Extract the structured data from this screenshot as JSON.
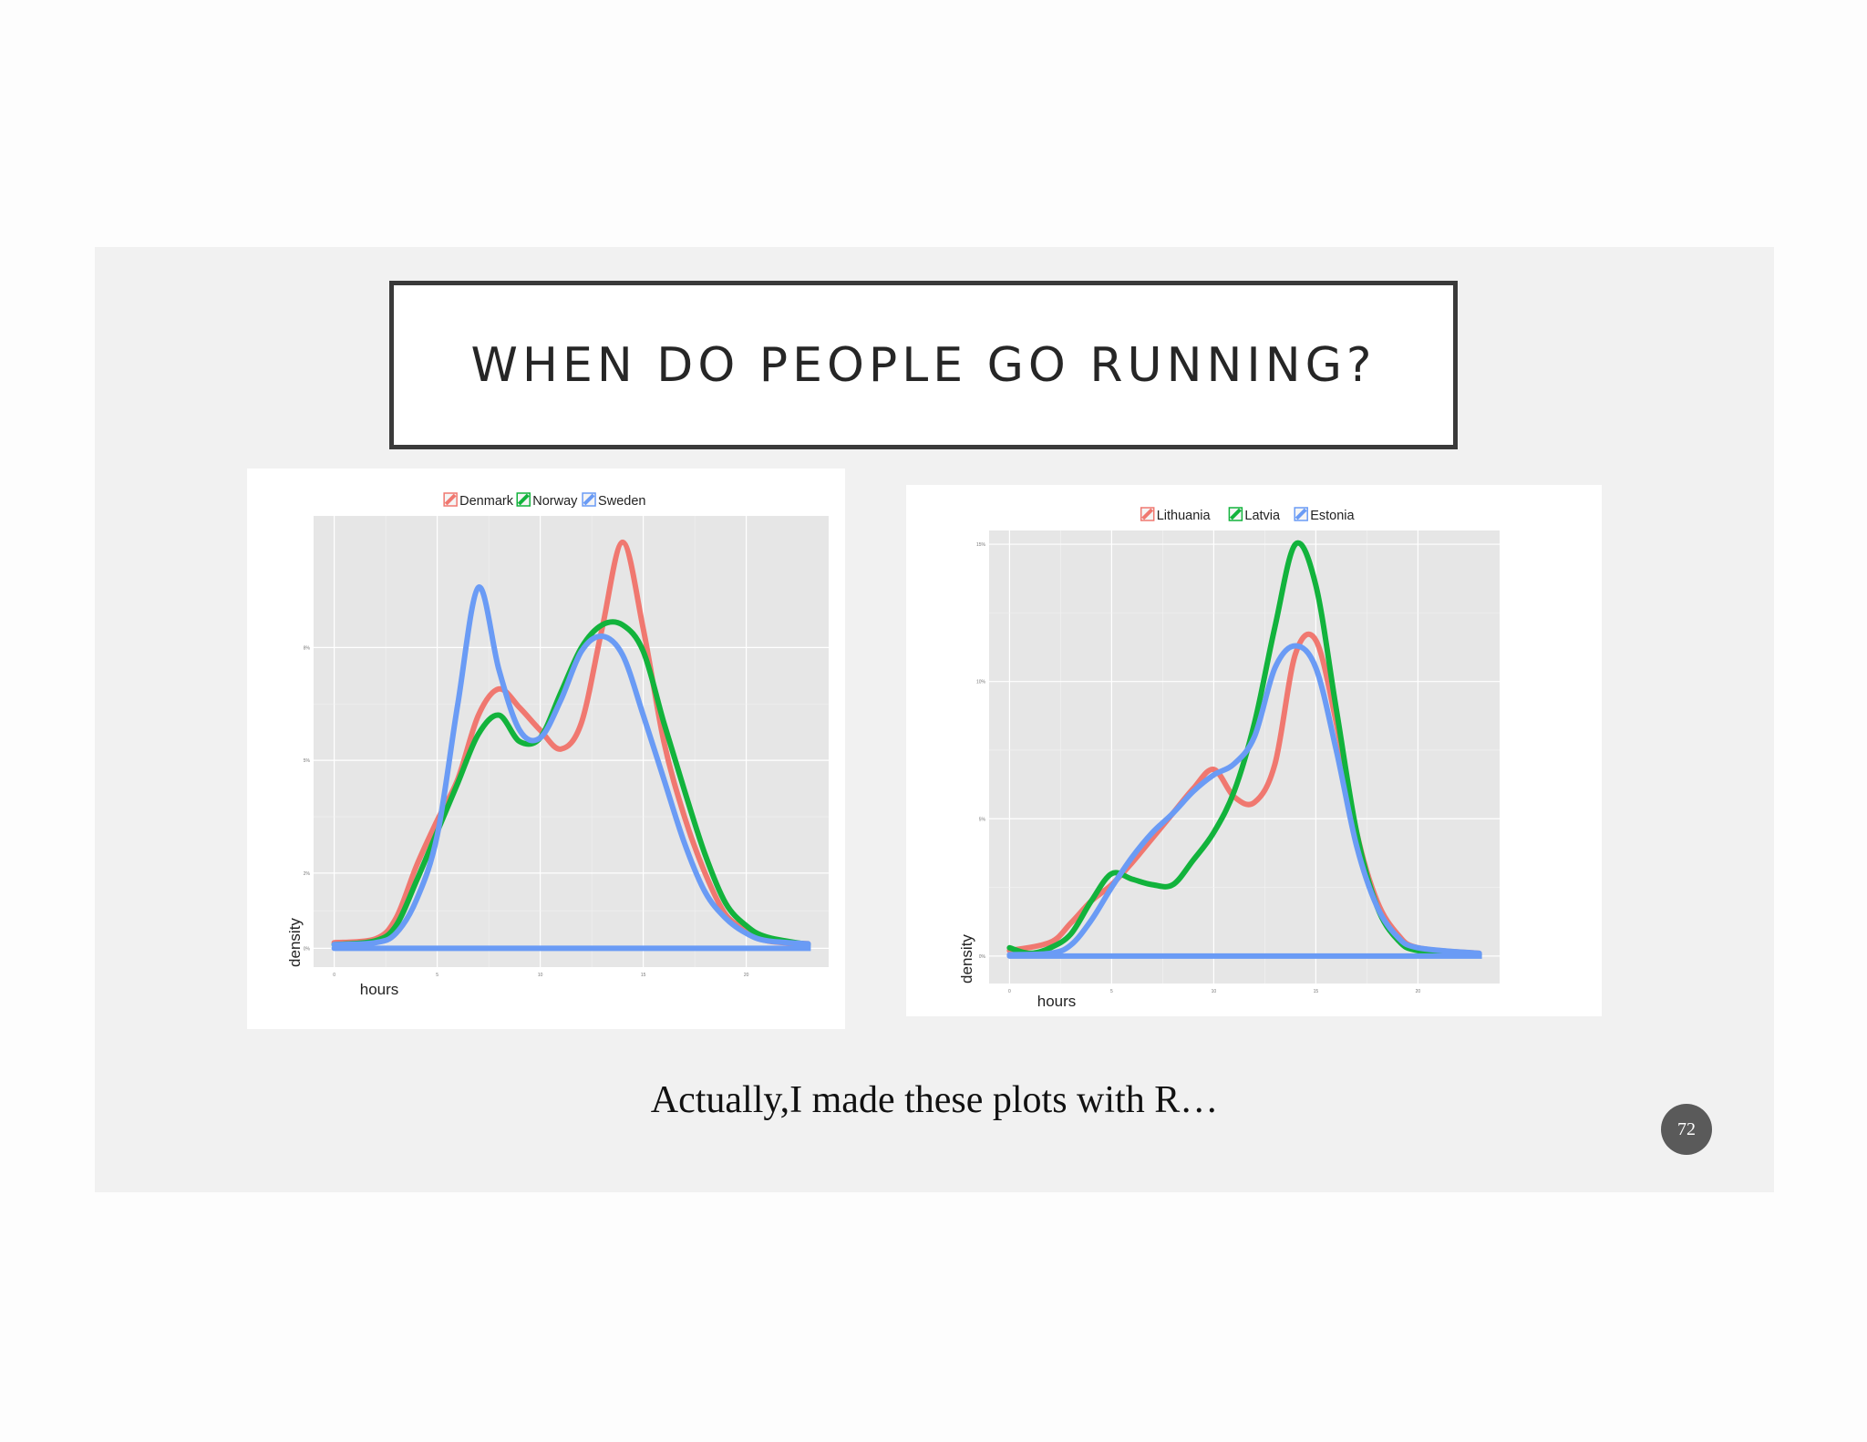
{
  "slide": {
    "title": "WHEN DO PEOPLE GO RUNNING?",
    "caption": "Actually,I made these plots with R…",
    "page_number": "72"
  },
  "colors": {
    "red": "#f07870",
    "green": "#12b33c",
    "blue": "#6a9bf5"
  },
  "chart_data": [
    {
      "type": "line",
      "legend": [
        "Denmark",
        "Norway",
        "Sweden"
      ],
      "xlabel": "hours",
      "ylabel": "density",
      "x_ticks": [
        "0",
        "5",
        "10",
        "15",
        "20"
      ],
      "y_ticks": [
        "0%",
        "2%",
        "5%",
        "8%"
      ],
      "xlim": [
        -1,
        24
      ],
      "ylim": [
        -0.5,
        11.5
      ],
      "series": [
        {
          "name": "Denmark",
          "color": "#f07870",
          "points": [
            [
              0,
              0.15
            ],
            [
              2,
              0.25
            ],
            [
              3,
              0.8
            ],
            [
              4,
              2.2
            ],
            [
              5,
              3.4
            ],
            [
              6,
              4.5
            ],
            [
              7,
              6.2
            ],
            [
              8,
              6.9
            ],
            [
              9,
              6.4
            ],
            [
              10,
              5.8
            ],
            [
              11,
              5.3
            ],
            [
              12,
              6.0
            ],
            [
              13,
              8.5
            ],
            [
              14,
              10.8
            ],
            [
              15,
              8.5
            ],
            [
              16,
              5.5
            ],
            [
              17,
              3.5
            ],
            [
              18,
              2.0
            ],
            [
              19,
              0.9
            ],
            [
              20,
              0.5
            ],
            [
              21,
              0.2
            ],
            [
              23,
              0.12
            ]
          ]
        },
        {
          "name": "Norway",
          "color": "#12b33c",
          "points": [
            [
              0,
              0.1
            ],
            [
              2,
              0.2
            ],
            [
              3,
              0.6
            ],
            [
              4,
              1.8
            ],
            [
              5,
              3.1
            ],
            [
              6,
              4.4
            ],
            [
              7,
              5.7
            ],
            [
              8,
              6.2
            ],
            [
              9,
              5.5
            ],
            [
              10,
              5.6
            ],
            [
              11,
              6.8
            ],
            [
              12,
              8.0
            ],
            [
              13,
              8.6
            ],
            [
              14,
              8.6
            ],
            [
              15,
              7.9
            ],
            [
              16,
              6.0
            ],
            [
              17,
              4.2
            ],
            [
              18,
              2.5
            ],
            [
              19,
              1.2
            ],
            [
              20,
              0.6
            ],
            [
              21,
              0.3
            ],
            [
              23,
              0.1
            ]
          ]
        },
        {
          "name": "Sweden",
          "color": "#6a9bf5",
          "points": [
            [
              0,
              0.1
            ],
            [
              2,
              0.15
            ],
            [
              3,
              0.4
            ],
            [
              4,
              1.3
            ],
            [
              5,
              3.0
            ],
            [
              6,
              6.5
            ],
            [
              7,
              9.6
            ],
            [
              8,
              7.4
            ],
            [
              9,
              5.8
            ],
            [
              10,
              5.6
            ],
            [
              11,
              6.6
            ],
            [
              12,
              7.9
            ],
            [
              13,
              8.3
            ],
            [
              14,
              7.8
            ],
            [
              15,
              6.2
            ],
            [
              16,
              4.5
            ],
            [
              17,
              2.8
            ],
            [
              18,
              1.5
            ],
            [
              19,
              0.8
            ],
            [
              20,
              0.4
            ],
            [
              21,
              0.2
            ],
            [
              23,
              0.12
            ]
          ]
        }
      ]
    },
    {
      "type": "line",
      "legend": [
        "Lithuania",
        "Latvia",
        "Estonia"
      ],
      "xlabel": "hours",
      "ylabel": "density",
      "x_ticks": [
        "0",
        "5",
        "10",
        "15",
        "20"
      ],
      "y_ticks": [
        "0%",
        "5%",
        "10%",
        "15%"
      ],
      "xlim": [
        -1,
        24
      ],
      "ylim": [
        -1,
        15.5
      ],
      "series": [
        {
          "name": "Lithuania",
          "color": "#f07870",
          "points": [
            [
              0,
              0.2
            ],
            [
              2,
              0.5
            ],
            [
              3,
              1.2
            ],
            [
              4,
              2.0
            ],
            [
              5,
              2.6
            ],
            [
              6,
              3.4
            ],
            [
              7,
              4.3
            ],
            [
              8,
              5.2
            ],
            [
              9,
              6.1
            ],
            [
              10,
              6.8
            ],
            [
              11,
              5.8
            ],
            [
              12,
              5.6
            ],
            [
              13,
              7.0
            ],
            [
              14,
              11.0
            ],
            [
              15,
              11.5
            ],
            [
              16,
              8.5
            ],
            [
              17,
              4.5
            ],
            [
              18,
              2.0
            ],
            [
              19,
              0.8
            ],
            [
              20,
              0.3
            ],
            [
              23,
              0.1
            ]
          ]
        },
        {
          "name": "Latvia",
          "color": "#12b33c",
          "points": [
            [
              0,
              0.3
            ],
            [
              1,
              0.1
            ],
            [
              2,
              0.3
            ],
            [
              3,
              0.8
            ],
            [
              4,
              2.0
            ],
            [
              5,
              3.0
            ],
            [
              6,
              2.8
            ],
            [
              7,
              2.6
            ],
            [
              8,
              2.6
            ],
            [
              9,
              3.5
            ],
            [
              10,
              4.5
            ],
            [
              11,
              6.0
            ],
            [
              12,
              8.5
            ],
            [
              13,
              12.0
            ],
            [
              14,
              15.0
            ],
            [
              15,
              13.5
            ],
            [
              16,
              9.0
            ],
            [
              17,
              4.5
            ],
            [
              18,
              1.8
            ],
            [
              19,
              0.6
            ],
            [
              20,
              0.2
            ],
            [
              23,
              0.05
            ]
          ]
        },
        {
          "name": "Estonia",
          "color": "#6a9bf5",
          "points": [
            [
              0,
              0.05
            ],
            [
              2,
              0.1
            ],
            [
              3,
              0.4
            ],
            [
              4,
              1.3
            ],
            [
              5,
              2.5
            ],
            [
              6,
              3.6
            ],
            [
              7,
              4.5
            ],
            [
              8,
              5.2
            ],
            [
              9,
              6.0
            ],
            [
              10,
              6.6
            ],
            [
              11,
              7.0
            ],
            [
              12,
              8.0
            ],
            [
              13,
              10.5
            ],
            [
              14,
              11.3
            ],
            [
              15,
              10.5
            ],
            [
              16,
              7.5
            ],
            [
              17,
              4.0
            ],
            [
              18,
              1.8
            ],
            [
              19,
              0.7
            ],
            [
              20,
              0.3
            ],
            [
              23,
              0.1
            ]
          ]
        }
      ]
    }
  ]
}
